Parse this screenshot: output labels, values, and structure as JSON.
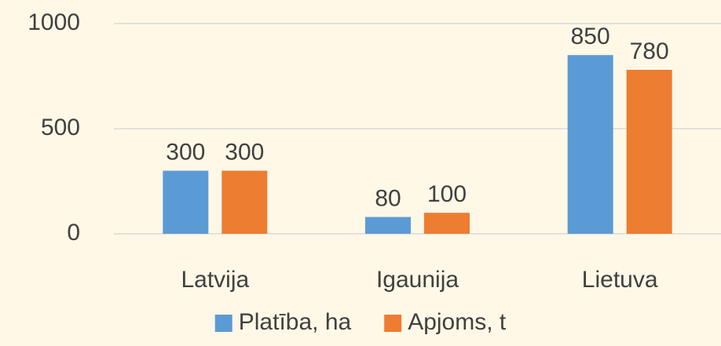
{
  "chart_data": {
    "type": "bar",
    "categories": [
      "Latvija",
      "Igaunija",
      "Lietuva"
    ],
    "series": [
      {
        "name": "Platība, ha",
        "color": "#5b9bd5",
        "values": [
          300,
          80,
          850
        ]
      },
      {
        "name": "Apjoms, t",
        "color": "#ed7d31",
        "values": [
          300,
          100,
          780
        ]
      }
    ],
    "ylim": [
      0,
      1000
    ],
    "yticks": [
      0,
      500,
      1000
    ],
    "grid": true,
    "legend": "bottom"
  }
}
